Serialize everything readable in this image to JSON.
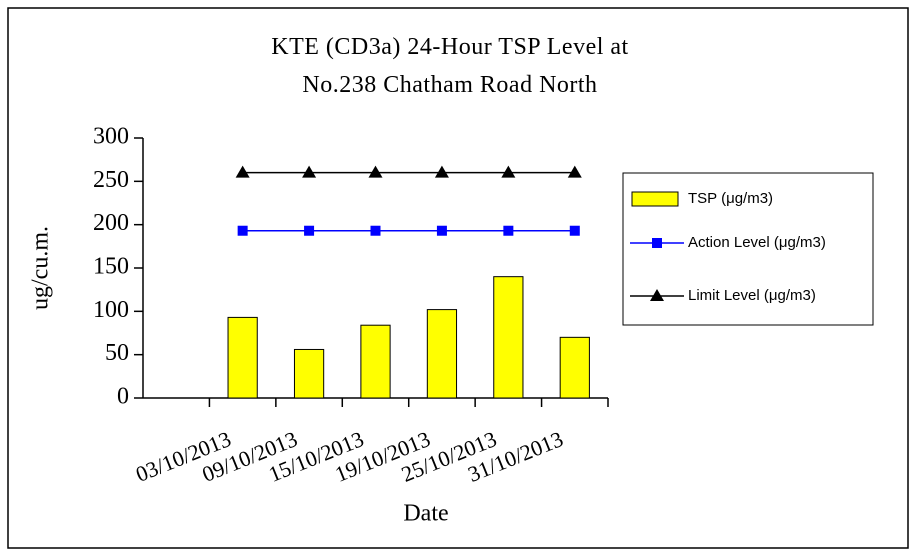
{
  "chart_data": {
    "type": "bar",
    "title": "KTE  (CD3a) 24-Hour TSP Level at No.238 Chatham Road North",
    "x_label": "Date",
    "y_label": "ug/cu.m.",
    "categories": [
      null,
      "03/10/2013",
      "09/10/2013",
      "15/10/2013",
      "19/10/2013",
      "25/10/2013",
      "31/10/2013"
    ],
    "series": [
      {
        "name": "TSP (μg/m3)",
        "type": "bar",
        "color": "#ffff00",
        "values": [
          null,
          93,
          56,
          84,
          102,
          140,
          70
        ]
      },
      {
        "name": "Action Level (μg/m3)",
        "type": "line",
        "marker": "square",
        "color": "#0000ff",
        "values": [
          null,
          193,
          193,
          193,
          193,
          193,
          193
        ]
      },
      {
        "name": "Limit Level (μg/m3)",
        "type": "line",
        "marker": "triangle",
        "color": "#000000",
        "values": [
          null,
          260,
          260,
          260,
          260,
          260,
          260
        ]
      }
    ],
    "ylim": [
      0,
      300
    ],
    "yticks": [
      0,
      50,
      100,
      150,
      200,
      250,
      300
    ],
    "grid": false,
    "legend": "right"
  }
}
